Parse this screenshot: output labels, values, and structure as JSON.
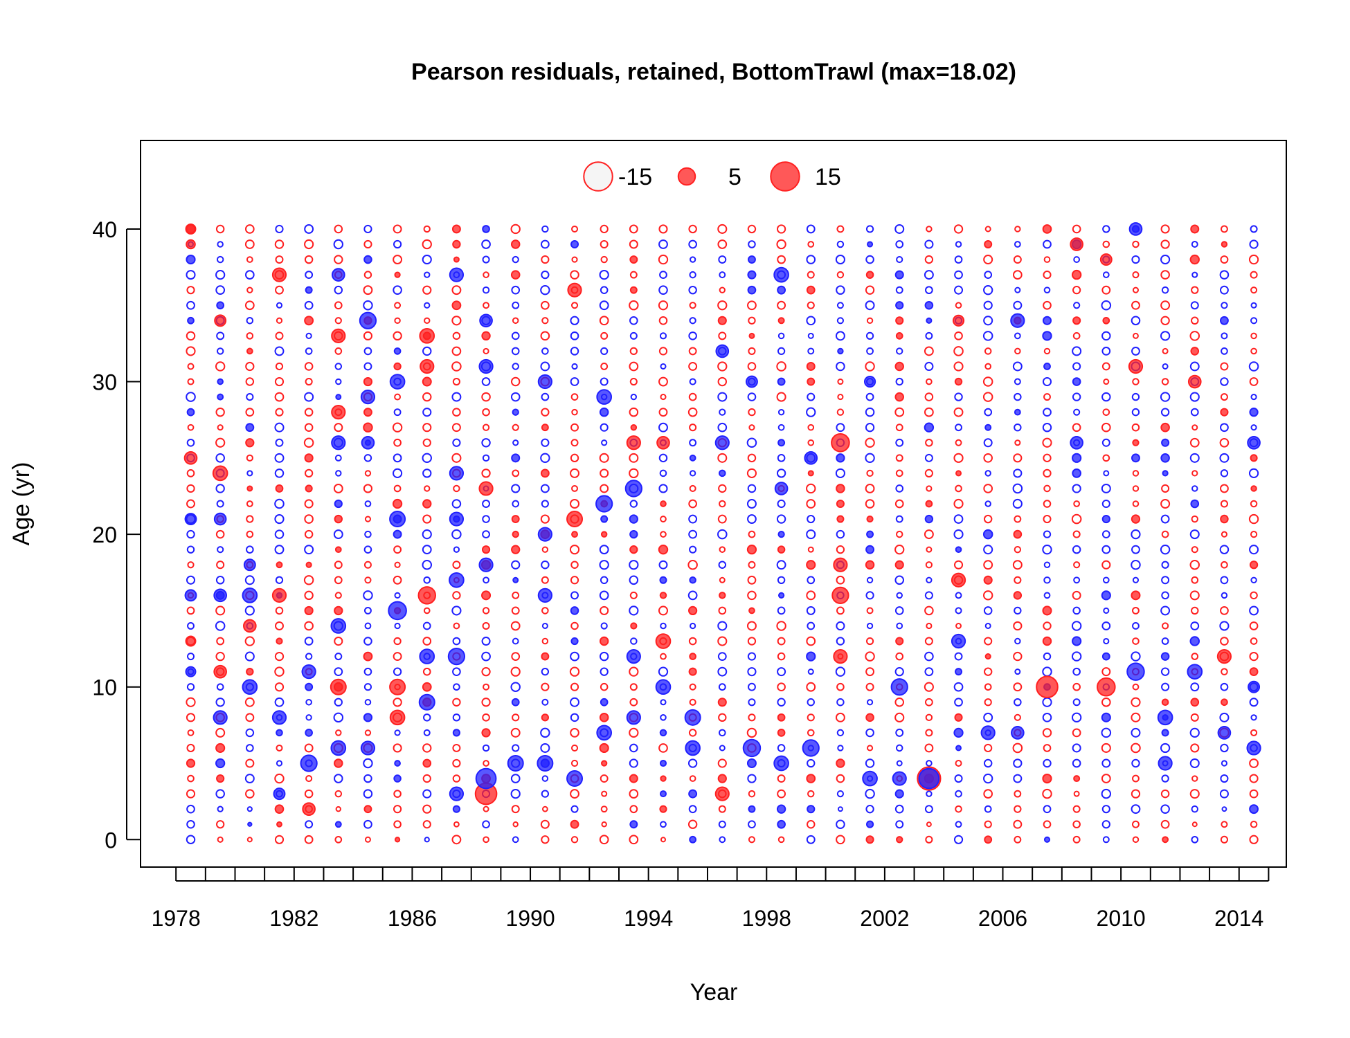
{
  "chart_data": {
    "type": "scatter",
    "subtype": "bubble",
    "title": "Pearson residuals, retained, BottomTrawl (max=18.02)",
    "xlabel": "Year",
    "ylabel": "Age (yr)",
    "xlim": [
      1976.8,
      2015.6
    ],
    "ylim": [
      -1.8,
      45.8
    ],
    "x_ticks": [
      1978,
      1979,
      1980,
      1981,
      1982,
      1983,
      1984,
      1985,
      1986,
      1987,
      1988,
      1989,
      1990,
      1991,
      1992,
      1993,
      1994,
      1995,
      1996,
      1997,
      1998,
      1999,
      2000,
      2001,
      2002,
      2003,
      2004,
      2005,
      2006,
      2007,
      2008,
      2009,
      2010,
      2011,
      2012,
      2013,
      2014,
      2015
    ],
    "x_tick_labels": [
      {
        "value": 1978,
        "label": "1978"
      },
      {
        "value": 1982,
        "label": "1982"
      },
      {
        "value": 1986,
        "label": "1986"
      },
      {
        "value": 1990,
        "label": "1990"
      },
      {
        "value": 1994,
        "label": "1994"
      },
      {
        "value": 1998,
        "label": "1998"
      },
      {
        "value": 2002,
        "label": "2002"
      },
      {
        "value": 2006,
        "label": "2006"
      },
      {
        "value": 2010,
        "label": "2010"
      },
      {
        "value": 2014,
        "label": "2014"
      }
    ],
    "y_ticks": [
      {
        "value": 0,
        "label": "0"
      },
      {
        "value": 10,
        "label": "10"
      },
      {
        "value": 20,
        "label": "20"
      },
      {
        "value": 30,
        "label": "30"
      },
      {
        "value": 40,
        "label": "40"
      }
    ],
    "max_abs_residual": 18.02,
    "colors": {
      "positive": "#ff2020",
      "negative": "#2020ff",
      "fill_alpha": 0.75,
      "legend_negative_fill": "#f5f5f5"
    },
    "legend": {
      "position": "top",
      "items": [
        {
          "label": "-15",
          "value": -15,
          "fill": "#f5f5f5",
          "stroke": "#ff2020"
        },
        {
          "label": "5",
          "value": 5,
          "fill": "#ff2020",
          "stroke": "#ff2020"
        },
        {
          "label": "15",
          "value": 15,
          "fill": "#ff2020",
          "stroke": "#ff2020"
        }
      ]
    },
    "ages": [
      0,
      1,
      2,
      3,
      4,
      5,
      6,
      7,
      8,
      9,
      10,
      11,
      12,
      13,
      14,
      15,
      16,
      17,
      18,
      19,
      20,
      21,
      22,
      23,
      24,
      25,
      26,
      27,
      28,
      29,
      30,
      31,
      32,
      33,
      34,
      35,
      36,
      37,
      38,
      39,
      40
    ],
    "years": [
      1978.5,
      1979.5,
      1980.5,
      1981.5,
      1982.5,
      1983.5,
      1984.5,
      1985.5,
      1986.5,
      1987.5,
      1988.5,
      1989.5,
      1990.5,
      1991.5,
      1992.5,
      1993.5,
      1994.5,
      1995.5,
      1996.5,
      1997.5,
      1998.5,
      1999.5,
      2000.5,
      2001.5,
      2002.5,
      2003.5,
      2004.5,
      2005.5,
      2006.5,
      2007.5,
      2008.5,
      2009.5,
      2010.5,
      2011.5,
      2012.5,
      2013.5,
      2014.5
    ],
    "notable_points": [
      {
        "x": 1978.5,
        "y": 25,
        "residual": 2.5
      },
      {
        "x": 1978.5,
        "y": 40,
        "residual": 1.5
      },
      {
        "x": 1978.5,
        "y": 39,
        "residual": 1.2
      },
      {
        "x": 1978.5,
        "y": 13,
        "residual": 1.5
      },
      {
        "x": 1978.5,
        "y": 21,
        "residual": -2.0
      },
      {
        "x": 1978.5,
        "y": 16,
        "residual": -2.0
      },
      {
        "x": 1978.5,
        "y": 11,
        "residual": -1.5
      },
      {
        "x": 1979.5,
        "y": 24,
        "residual": 3.5
      },
      {
        "x": 1979.5,
        "y": 34,
        "residual": 2.0
      },
      {
        "x": 1979.5,
        "y": 11,
        "residual": 2.5
      },
      {
        "x": 1979.5,
        "y": 16,
        "residual": -2.5
      },
      {
        "x": 1979.5,
        "y": 21,
        "residual": -2.2
      },
      {
        "x": 1979.5,
        "y": 8,
        "residual": -3.0
      },
      {
        "x": 1980.5,
        "y": 16,
        "residual": -3.5
      },
      {
        "x": 1980.5,
        "y": 10,
        "residual": -3.5
      },
      {
        "x": 1980.5,
        "y": 14,
        "residual": 2.5
      },
      {
        "x": 1980.5,
        "y": 18,
        "residual": -2.0
      },
      {
        "x": 1981.5,
        "y": 37,
        "residual": 3.0
      },
      {
        "x": 1981.5,
        "y": 16,
        "residual": 3.0
      },
      {
        "x": 1981.5,
        "y": 8,
        "residual": -3.0
      },
      {
        "x": 1981.5,
        "y": 3,
        "residual": -2.0
      },
      {
        "x": 1982.5,
        "y": 5,
        "residual": -4.5
      },
      {
        "x": 1982.5,
        "y": 2,
        "residual": 2.5
      },
      {
        "x": 1982.5,
        "y": 11,
        "residual": -3.0
      },
      {
        "x": 1983.5,
        "y": 37,
        "residual": -2.5
      },
      {
        "x": 1983.5,
        "y": 33,
        "residual": 3.0
      },
      {
        "x": 1983.5,
        "y": 28,
        "residual": 3.0
      },
      {
        "x": 1983.5,
        "y": 26,
        "residual": -3.0
      },
      {
        "x": 1983.5,
        "y": 10,
        "residual": 4.0
      },
      {
        "x": 1983.5,
        "y": 6,
        "residual": -3.5
      },
      {
        "x": 1983.5,
        "y": 14,
        "residual": -3.5
      },
      {
        "x": 1984.5,
        "y": 34,
        "residual": -4.5
      },
      {
        "x": 1984.5,
        "y": 29,
        "residual": -3.0
      },
      {
        "x": 1984.5,
        "y": 26,
        "residual": -2.5
      },
      {
        "x": 1984.5,
        "y": 6,
        "residual": -3.0
      },
      {
        "x": 1985.5,
        "y": 30,
        "residual": -3.5
      },
      {
        "x": 1985.5,
        "y": 21,
        "residual": -4.0
      },
      {
        "x": 1985.5,
        "y": 15,
        "residual": -5.5
      },
      {
        "x": 1985.5,
        "y": 10,
        "residual": 4.0
      },
      {
        "x": 1985.5,
        "y": 8,
        "residual": 3.5
      },
      {
        "x": 1986.5,
        "y": 33,
        "residual": 3.5
      },
      {
        "x": 1986.5,
        "y": 31,
        "residual": 3.0
      },
      {
        "x": 1986.5,
        "y": 16,
        "residual": 5.0
      },
      {
        "x": 1986.5,
        "y": 12,
        "residual": -3.5
      },
      {
        "x": 1986.5,
        "y": 9,
        "residual": -4.0
      },
      {
        "x": 1987.5,
        "y": 37,
        "residual": -3.0
      },
      {
        "x": 1987.5,
        "y": 24,
        "residual": -3.0
      },
      {
        "x": 1987.5,
        "y": 21,
        "residual": -3.0
      },
      {
        "x": 1987.5,
        "y": 17,
        "residual": -3.5
      },
      {
        "x": 1987.5,
        "y": 12,
        "residual": -4.5
      },
      {
        "x": 1987.5,
        "y": 3,
        "residual": -3.0
      },
      {
        "x": 1988.5,
        "y": 3,
        "residual": 8.0
      },
      {
        "x": 1988.5,
        "y": 4,
        "residual": -7.0
      },
      {
        "x": 1988.5,
        "y": 23,
        "residual": 3.0
      },
      {
        "x": 1988.5,
        "y": 18,
        "residual": -3.0
      },
      {
        "x": 1988.5,
        "y": 31,
        "residual": -3.0
      },
      {
        "x": 1988.5,
        "y": 34,
        "residual": -2.5
      },
      {
        "x": 1989.5,
        "y": 5,
        "residual": -4.0
      },
      {
        "x": 1990.5,
        "y": 20,
        "residual": -3.0
      },
      {
        "x": 1990.5,
        "y": 30,
        "residual": -3.0
      },
      {
        "x": 1990.5,
        "y": 16,
        "residual": -3.0
      },
      {
        "x": 1990.5,
        "y": 5,
        "residual": -4.0
      },
      {
        "x": 1991.5,
        "y": 36,
        "residual": 3.0
      },
      {
        "x": 1991.5,
        "y": 21,
        "residual": 4.0
      },
      {
        "x": 1991.5,
        "y": 4,
        "residual": -4.0
      },
      {
        "x": 1992.5,
        "y": 29,
        "residual": -3.5
      },
      {
        "x": 1992.5,
        "y": 22,
        "residual": -4.5
      },
      {
        "x": 1992.5,
        "y": 7,
        "residual": -3.5
      },
      {
        "x": 1993.5,
        "y": 23,
        "residual": -4.5
      },
      {
        "x": 1993.5,
        "y": 26,
        "residual": 3.0
      },
      {
        "x": 1993.5,
        "y": 12,
        "residual": -3.0
      },
      {
        "x": 1993.5,
        "y": 8,
        "residual": -3.0
      },
      {
        "x": 1994.5,
        "y": 13,
        "residual": 3.5
      },
      {
        "x": 1994.5,
        "y": 26,
        "residual": 2.5
      },
      {
        "x": 1994.5,
        "y": 10,
        "residual": -3.5
      },
      {
        "x": 1995.5,
        "y": 8,
        "residual": -4.0
      },
      {
        "x": 1995.5,
        "y": 6,
        "residual": -3.5
      },
      {
        "x": 1996.5,
        "y": 3,
        "residual": 3.0
      },
      {
        "x": 1996.5,
        "y": 26,
        "residual": -3.0
      },
      {
        "x": 1996.5,
        "y": 32,
        "residual": -2.5
      },
      {
        "x": 1997.5,
        "y": 6,
        "residual": -5.0
      },
      {
        "x": 1997.5,
        "y": 30,
        "residual": -2.0
      },
      {
        "x": 1998.5,
        "y": 37,
        "residual": -3.5
      },
      {
        "x": 1998.5,
        "y": 5,
        "residual": -3.5
      },
      {
        "x": 1998.5,
        "y": 23,
        "residual": -2.5
      },
      {
        "x": 1999.5,
        "y": 6,
        "residual": -4.5
      },
      {
        "x": 1999.5,
        "y": 25,
        "residual": -2.5
      },
      {
        "x": 2000.5,
        "y": 26,
        "residual": 5.5
      },
      {
        "x": 2000.5,
        "y": 16,
        "residual": 4.5
      },
      {
        "x": 2000.5,
        "y": 18,
        "residual": 3.0
      },
      {
        "x": 2000.5,
        "y": 12,
        "residual": 3.0
      },
      {
        "x": 2001.5,
        "y": 4,
        "residual": -3.5
      },
      {
        "x": 2001.5,
        "y": 30,
        "residual": -1.8
      },
      {
        "x": 2002.5,
        "y": 10,
        "residual": -4.5
      },
      {
        "x": 2002.5,
        "y": 4,
        "residual": -3.0
      },
      {
        "x": 2003.5,
        "y": 4,
        "residual": 9.5
      },
      {
        "x": 2003.5,
        "y": 4,
        "residual": -7.0
      },
      {
        "x": 2004.5,
        "y": 17,
        "residual": 3.0
      },
      {
        "x": 2004.5,
        "y": 13,
        "residual": -3.0
      },
      {
        "x": 2004.5,
        "y": 34,
        "residual": 1.8
      },
      {
        "x": 2005.5,
        "y": 7,
        "residual": -3.0
      },
      {
        "x": 2006.5,
        "y": 34,
        "residual": -3.0
      },
      {
        "x": 2006.5,
        "y": 7,
        "residual": -2.5
      },
      {
        "x": 2007.5,
        "y": 10,
        "residual": 8.0
      },
      {
        "x": 2008.5,
        "y": 39,
        "residual": 2.5
      },
      {
        "x": 2008.5,
        "y": 26,
        "residual": -2.5
      },
      {
        "x": 2009.5,
        "y": 10,
        "residual": 5.5
      },
      {
        "x": 2009.5,
        "y": 38,
        "residual": 2.0
      },
      {
        "x": 2010.5,
        "y": 11,
        "residual": -5.0
      },
      {
        "x": 2010.5,
        "y": 40,
        "residual": -2.5
      },
      {
        "x": 2010.5,
        "y": 31,
        "residual": 3.0
      },
      {
        "x": 2011.5,
        "y": 8,
        "residual": -3.5
      },
      {
        "x": 2011.5,
        "y": 5,
        "residual": -3.0
      },
      {
        "x": 2012.5,
        "y": 11,
        "residual": -3.5
      },
      {
        "x": 2012.5,
        "y": 30,
        "residual": 2.5
      },
      {
        "x": 2013.5,
        "y": 12,
        "residual": 3.0
      },
      {
        "x": 2013.5,
        "y": 7,
        "residual": -2.5
      },
      {
        "x": 2014.5,
        "y": 26,
        "residual": -2.5
      },
      {
        "x": 2014.5,
        "y": 6,
        "residual": -3.0
      },
      {
        "x": 2014.5,
        "y": 10,
        "residual": -2.0
      }
    ]
  }
}
